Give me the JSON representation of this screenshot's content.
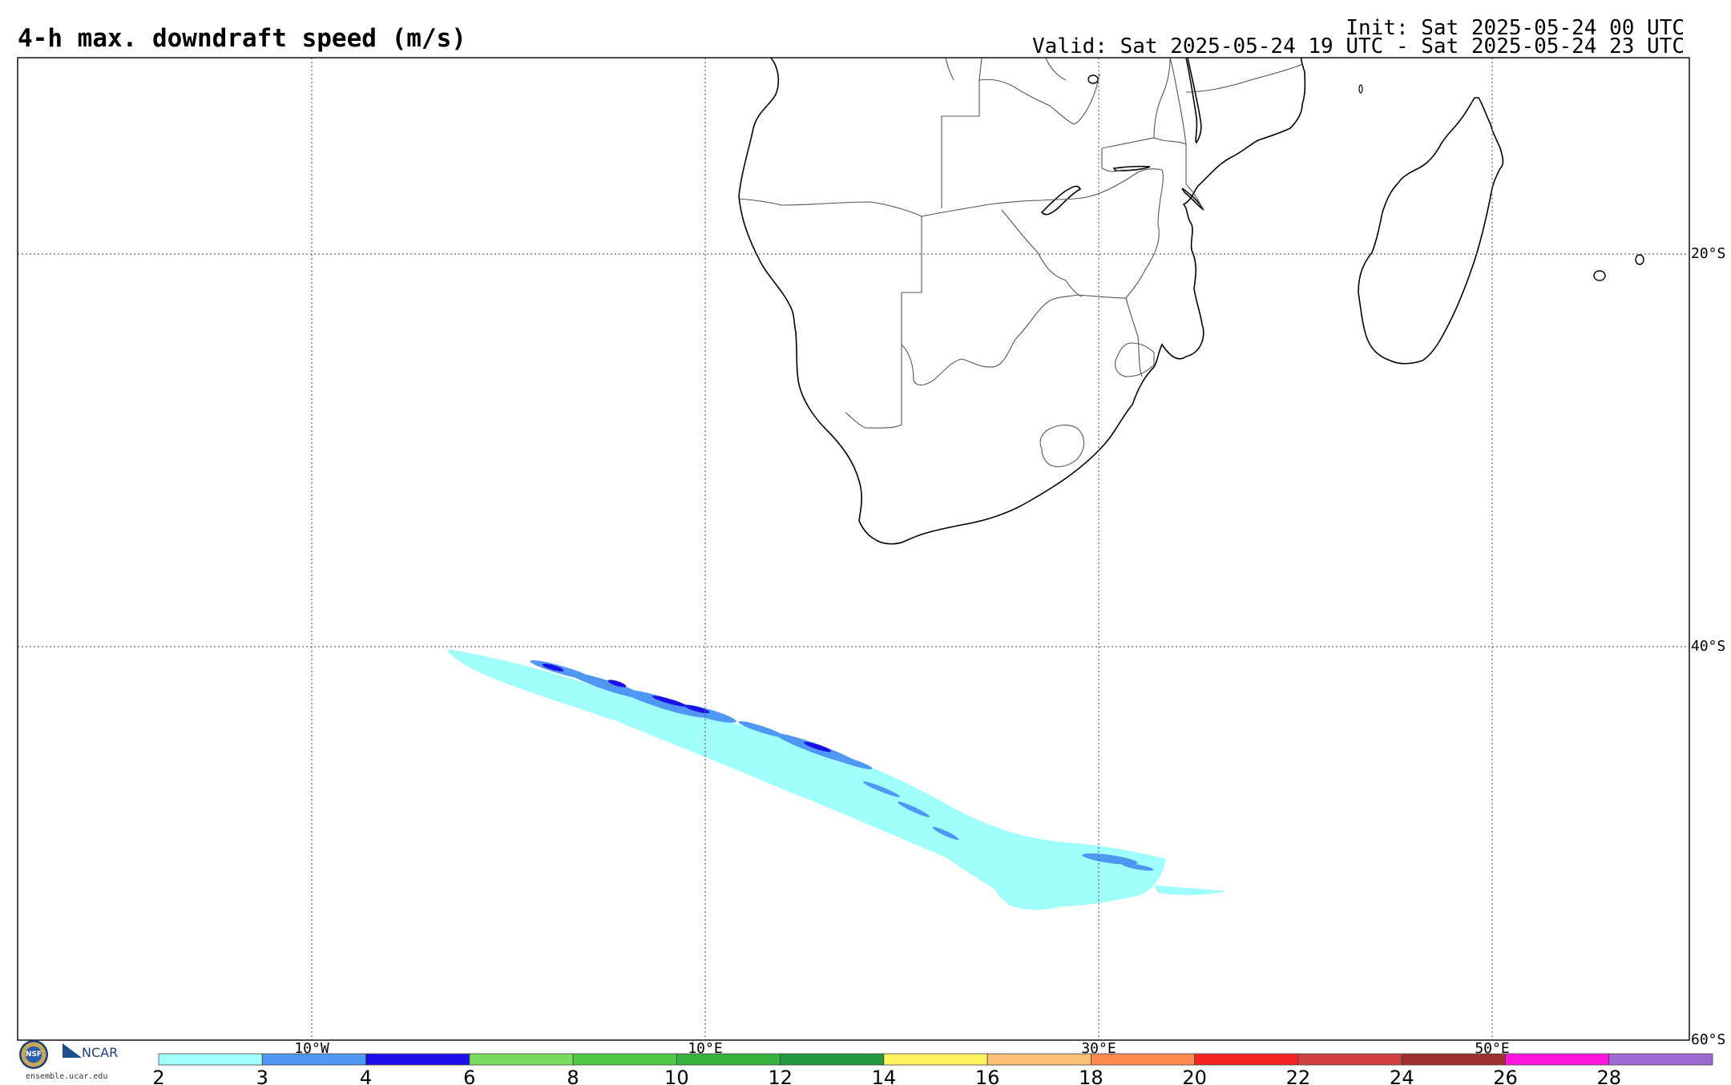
{
  "title": "4-h max. downdraft speed (m/s)",
  "init": "Init: Sat 2025-05-24 00 UTC",
  "valid": "Valid: Sat 2025-05-24 19 UTC - Sat 2025-05-24 23 UTC",
  "lat_labels": [
    "20°S",
    "40°S",
    "60°S"
  ],
  "lon_labels": [
    "10°W",
    "10°E",
    "30°E",
    "50°E"
  ],
  "colorbar": {
    "ticks": [
      "2",
      "3",
      "4",
      "6",
      "8",
      "10",
      "12",
      "14",
      "16",
      "18",
      "20",
      "22",
      "24",
      "26",
      "28"
    ],
    "colors": [
      "#a0fffb",
      "#4f97f2",
      "#1b10ea",
      "#7bdc5f",
      "#50c847",
      "#35b13c",
      "#239843",
      "#fff35e",
      "#ffc274",
      "#ff8a4f",
      "#f42424",
      "#cf4040",
      "#a03030",
      "#ff16de",
      "#9d6bd0"
    ]
  },
  "colors": {
    "light_cyan": "#a0fffb",
    "blue": "#4f97f2",
    "dark_blue": "#1b10ea",
    "coastline": "#000000",
    "border": "#555555",
    "grid": "#666666"
  },
  "logo": {
    "nsf": "NSF",
    "ncar": "NCAR",
    "url": "ensemble.ucar.edu"
  }
}
